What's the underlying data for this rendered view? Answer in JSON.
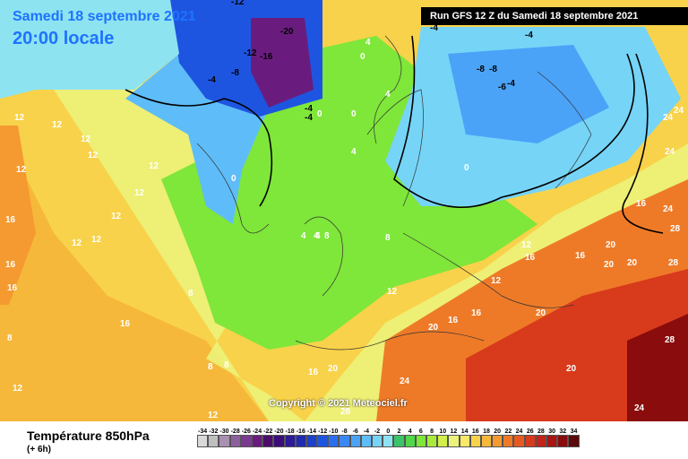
{
  "header": {
    "date": "Samedi 18 septembre 2021",
    "time": "20:00 locale",
    "run": "Run GFS 12 Z du Samedi 18 septembre 2021"
  },
  "copyright": "Copyright © 2021 Meteociel.fr",
  "footer": {
    "variable": "Température 850hPa",
    "lead": "(+ 6h)"
  },
  "scale": {
    "labels": [
      "-34",
      "-32",
      "-30",
      "-28",
      "-26",
      "-24",
      "-22",
      "-20",
      "-18",
      "-16",
      "-14",
      "-12",
      "-10",
      "-8",
      "-6",
      "-4",
      "-2",
      "0",
      "2",
      "4",
      "6",
      "8",
      "10",
      "12",
      "14",
      "16",
      "18",
      "20",
      "22",
      "24",
      "26",
      "28",
      "30",
      "32",
      "34"
    ],
    "colors": [
      "#d9d9d9",
      "#bfbfbf",
      "#a98fb2",
      "#8c5f9d",
      "#7a3a8f",
      "#6a1c7e",
      "#4b0c6b",
      "#3a0d7a",
      "#2c1a96",
      "#1f2ab3",
      "#1c3fcc",
      "#1e55e0",
      "#2b6ef0",
      "#3b88f5",
      "#4aa3f7",
      "#5ebdf8",
      "#76d4f7",
      "#8de3f0",
      "#39c46a",
      "#4fd94a",
      "#7fe63a",
      "#a8ec3a",
      "#d2f04a",
      "#ecf27a",
      "#f7e86a",
      "#f8d24a",
      "#f6b83a",
      "#f49a30",
      "#ee7a28",
      "#e65a22",
      "#d83a1c",
      "#c42418",
      "#aa1412",
      "#8a0c0c",
      "#5a0a0a"
    ]
  },
  "isotherm_labels": [
    "-12",
    "-20",
    "-12",
    "-16",
    "-8",
    "-4",
    "-4",
    "0",
    "-4",
    "0",
    "0",
    "0",
    "4",
    "4",
    "4",
    "4",
    "-4",
    "-4",
    "-8",
    "-8",
    "-6",
    "-4",
    "0",
    "12",
    "12",
    "12",
    "12",
    "12",
    "12",
    "12",
    "12",
    "12",
    "12",
    "16",
    "16",
    "16",
    "16",
    "8",
    "8",
    "8",
    "8",
    "8",
    "12",
    "12",
    "12",
    "16",
    "16",
    "16",
    "20",
    "20",
    "20",
    "20",
    "24",
    "24",
    "24",
    "24",
    "28",
    "28",
    "28",
    "16",
    "12",
    "12",
    "8",
    "8",
    "4",
    "4",
    "20",
    "16",
    "16",
    "20",
    "24",
    "20",
    "24",
    "28"
  ]
}
